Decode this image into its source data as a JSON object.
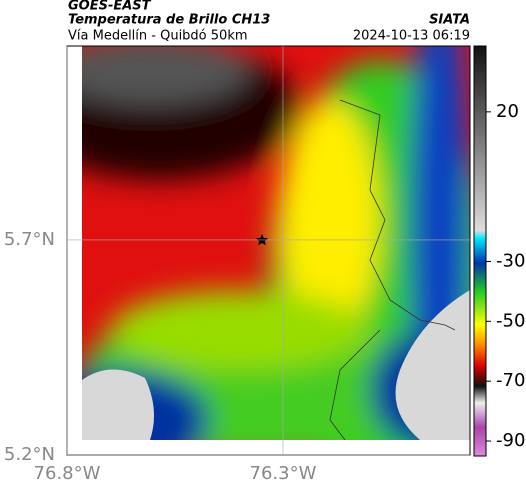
{
  "header": {
    "source": "GOES-EAST",
    "title": "Temperatura de Brillo CH13",
    "subtitle": "Vía Medellín - Quibdó 50km",
    "agency": "SIATA",
    "timestamp": "2024-10-13 06:19"
  },
  "map": {
    "xlim": [
      -76.8,
      -75.867
    ],
    "ylim": [
      5.2,
      6.151
    ],
    "xticks": [
      {
        "value": -76.8,
        "label": "76.8°W"
      },
      {
        "value": -76.3,
        "label": "76.3°W"
      }
    ],
    "yticks": [
      {
        "value": 5.2,
        "label": "5.2°N"
      },
      {
        "value": 5.7,
        "label": "5.7°N"
      }
    ]
  },
  "colorbar": {
    "clim": [
      -95,
      42
    ],
    "ticks": [
      20,
      -30,
      -50,
      -70,
      -90
    ]
  }
}
